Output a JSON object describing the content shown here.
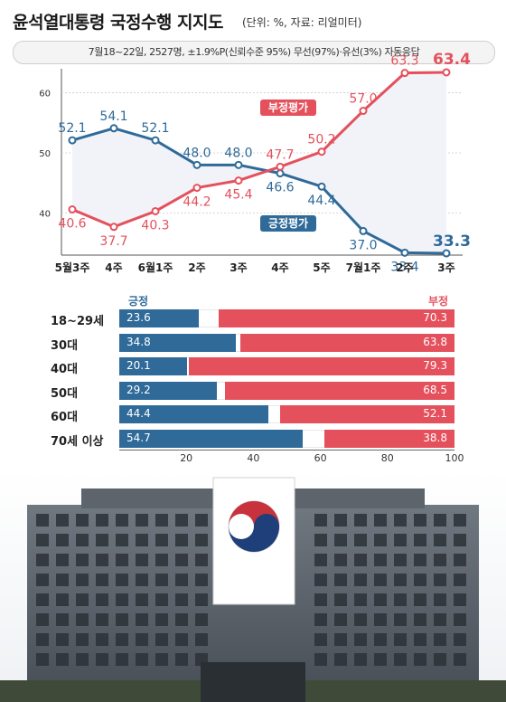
{
  "title": "윤석열대통령 국정수행 지지도",
  "source": "(단위: %, 자료: 리얼미터)",
  "subtitle": "7월18~22일, 2527명, ±1.9%P(신뢰수준 95%) 무선(97%)·유선(3%) 자동응답",
  "colors": {
    "approve": "#2f6a99",
    "disapprove": "#e4515d"
  },
  "chart_data": [
    {
      "type": "line",
      "categories": [
        "5월3주",
        "4주",
        "6월1주",
        "2주",
        "3주",
        "4주",
        "5주",
        "7월1주",
        "2주",
        "3주"
      ],
      "series": [
        {
          "name": "긍정평가",
          "values": [
            52.1,
            54.1,
            52.1,
            48.0,
            48.0,
            46.6,
            44.4,
            37.0,
            33.4,
            33.3
          ]
        },
        {
          "name": "부정평가",
          "values": [
            40.6,
            37.7,
            40.3,
            44.2,
            45.4,
            47.7,
            50.2,
            57.0,
            63.3,
            63.4
          ]
        }
      ],
      "y_ticks": [
        40,
        50,
        60
      ],
      "ylim": [
        33,
        64
      ]
    },
    {
      "type": "bar",
      "stacked": true,
      "categories": [
        "18~29세",
        "30대",
        "40대",
        "50대",
        "60대",
        "70세 이상"
      ],
      "series": [
        {
          "name": "긍정",
          "values": [
            23.6,
            34.8,
            20.1,
            29.2,
            44.4,
            54.7
          ]
        },
        {
          "name": "부정",
          "values": [
            70.3,
            63.8,
            79.3,
            68.5,
            52.1,
            38.8
          ]
        }
      ],
      "x_ticks": [
        20,
        40,
        60,
        80,
        100
      ],
      "xlim": [
        0,
        100
      ]
    }
  ]
}
